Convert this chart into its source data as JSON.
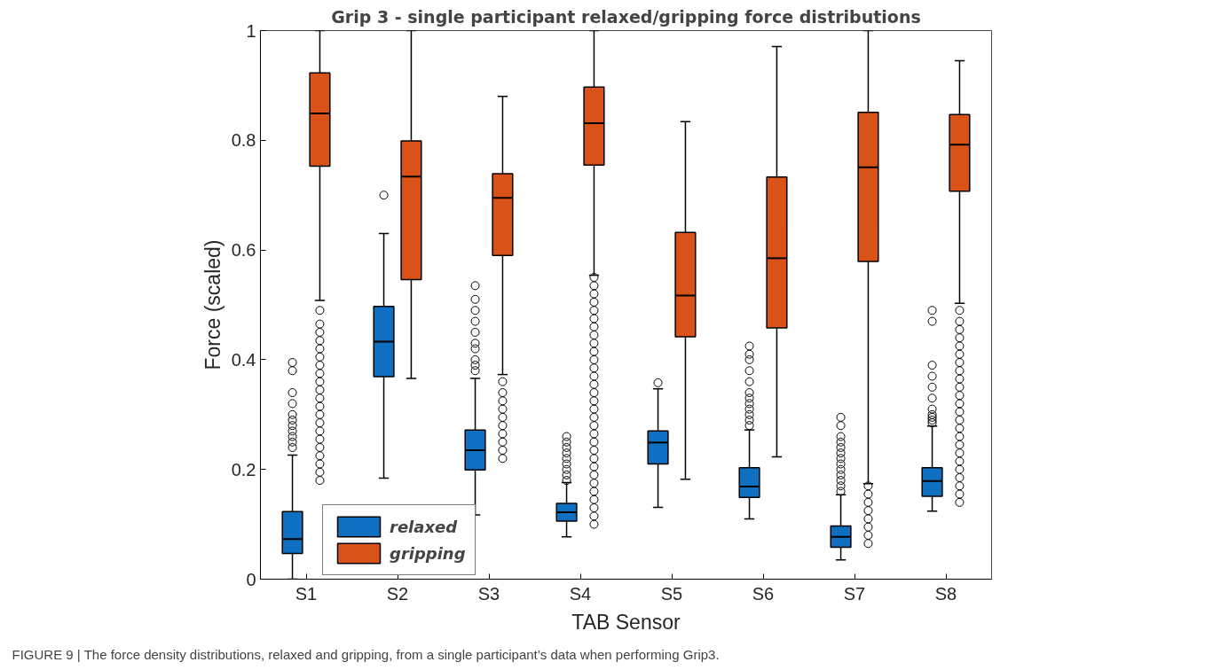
{
  "chart_data": {
    "type": "box",
    "title": "Grip 3 - single participant relaxed/gripping force distributions",
    "xlabel": "TAB Sensor",
    "ylabel": "Force (scaled)",
    "categories": [
      "S1",
      "S2",
      "S3",
      "S4",
      "S5",
      "S6",
      "S7",
      "S8"
    ],
    "ylim": [
      0,
      1
    ],
    "yticks": [
      0,
      0.2,
      0.4,
      0.6,
      0.8,
      1
    ],
    "legend": "bottom left",
    "annotations": [
      "FIGURE 9 | The force density distributions, relaxed and gripping, from a single participant’s data when performing Grip3."
    ],
    "series": [
      {
        "name": "relaxed",
        "color": "#0f6fc0",
        "boxes": [
          {
            "low": 0,
            "q1": 0.047,
            "median": 0.073,
            "q3": 0.123,
            "high": 0.226,
            "outliers": [
              0.24,
              0.25,
              0.26,
              0.27,
              0.28,
              0.29,
              0.3,
              0.32,
              0.34,
              0.38,
              0.395
            ]
          },
          {
            "low": 0.184,
            "q1": 0.369,
            "median": 0.433,
            "q3": 0.497,
            "high": 0.63,
            "outliers": [
              0.7
            ]
          },
          {
            "low": 0.117,
            "q1": 0.199,
            "median": 0.235,
            "q3": 0.272,
            "high": 0.366,
            "outliers": [
              0.38,
              0.39,
              0.4,
              0.42,
              0.43,
              0.45,
              0.47,
              0.49,
              0.51,
              0.535
            ]
          },
          {
            "low": 0.077,
            "q1": 0.106,
            "median": 0.122,
            "q3": 0.138,
            "high": 0.176,
            "outliers": [
              0.18,
              0.19,
              0.2,
              0.21,
              0.22,
              0.23,
              0.24,
              0.25,
              0.26
            ]
          },
          {
            "low": 0.131,
            "q1": 0.21,
            "median": 0.249,
            "q3": 0.27,
            "high": 0.347,
            "outliers": [
              0.358
            ]
          },
          {
            "low": 0.11,
            "q1": 0.149,
            "median": 0.169,
            "q3": 0.203,
            "high": 0.272,
            "outliers": [
              0.28,
              0.29,
              0.3,
              0.31,
              0.32,
              0.33,
              0.34,
              0.36,
              0.38,
              0.4,
              0.41,
              0.425
            ]
          },
          {
            "low": 0.035,
            "q1": 0.058,
            "median": 0.077,
            "q3": 0.097,
            "high": 0.154,
            "outliers": [
              0.16,
              0.17,
              0.18,
              0.19,
              0.2,
              0.21,
              0.22,
              0.23,
              0.24,
              0.25,
              0.26,
              0.28,
              0.295
            ]
          },
          {
            "low": 0.124,
            "q1": 0.151,
            "median": 0.179,
            "q3": 0.203,
            "high": 0.279,
            "outliers": [
              0.285,
              0.29,
              0.295,
              0.3,
              0.31,
              0.33,
              0.35,
              0.37,
              0.39,
              0.47,
              0.49
            ]
          }
        ]
      },
      {
        "name": "gripping",
        "color": "#d95319",
        "boxes": [
          {
            "low": 0.508,
            "q1": 0.753,
            "median": 0.849,
            "q3": 0.923,
            "high": 1,
            "outliers": [
              0.18,
              0.195,
              0.21,
              0.225,
              0.24,
              0.255,
              0.27,
              0.285,
              0.3,
              0.315,
              0.33,
              0.345,
              0.36,
              0.375,
              0.39,
              0.405,
              0.42,
              0.435,
              0.45,
              0.465,
              0.49
            ]
          },
          {
            "low": 0.366,
            "q1": 0.546,
            "median": 0.734,
            "q3": 0.799,
            "high": 1
          },
          {
            "low": 0.373,
            "q1": 0.59,
            "median": 0.695,
            "q3": 0.739,
            "high": 0.88,
            "outliers": [
              0.22,
              0.235,
              0.25,
              0.265,
              0.28,
              0.295,
              0.31,
              0.325,
              0.34,
              0.36
            ]
          },
          {
            "low": 0.554,
            "q1": 0.755,
            "median": 0.831,
            "q3": 0.897,
            "high": 1,
            "outliers": [
              0.1,
              0.115,
              0.13,
              0.145,
              0.16,
              0.175,
              0.19,
              0.205,
              0.22,
              0.235,
              0.25,
              0.265,
              0.28,
              0.295,
              0.31,
              0.325,
              0.34,
              0.355,
              0.37,
              0.385,
              0.4,
              0.415,
              0.43,
              0.445,
              0.46,
              0.475,
              0.49,
              0.505,
              0.52,
              0.535,
              0.55
            ]
          },
          {
            "low": 0.182,
            "q1": 0.442,
            "median": 0.517,
            "q3": 0.632,
            "high": 0.834
          },
          {
            "low": 0.223,
            "q1": 0.458,
            "median": 0.585,
            "q3": 0.733,
            "high": 0.971
          },
          {
            "low": 0.174,
            "q1": 0.579,
            "median": 0.751,
            "q3": 0.851,
            "high": 1,
            "outliers": [
              0.065,
              0.08,
              0.095,
              0.11,
              0.125,
              0.14,
              0.155,
              0.17
            ]
          },
          {
            "low": 0.503,
            "q1": 0.707,
            "median": 0.792,
            "q3": 0.847,
            "high": 0.945,
            "outliers": [
              0.14,
              0.155,
              0.17,
              0.185,
              0.2,
              0.215,
              0.23,
              0.245,
              0.26,
              0.275,
              0.29,
              0.305,
              0.32,
              0.335,
              0.35,
              0.365,
              0.38,
              0.395,
              0.41,
              0.425,
              0.44,
              0.455,
              0.47,
              0.49
            ]
          }
        ]
      }
    ]
  }
}
